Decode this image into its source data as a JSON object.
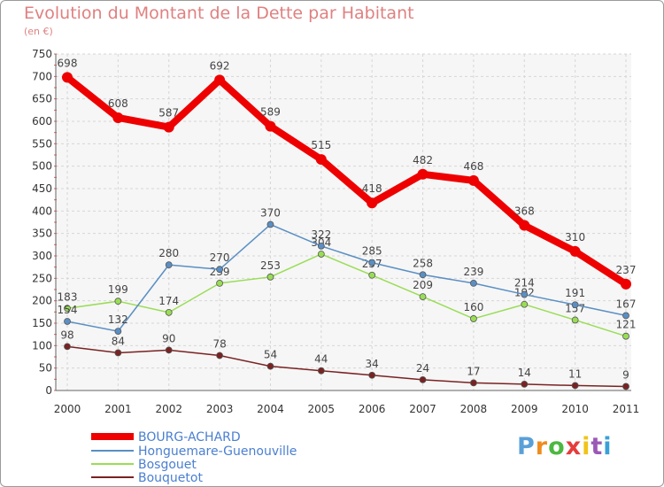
{
  "chart_data": {
    "type": "line",
    "title": "Evolution du Montant de la Dette par Habitant",
    "subtitle": "(en €)",
    "x": [
      "2000",
      "2001",
      "2002",
      "2003",
      "2004",
      "2005",
      "2006",
      "2007",
      "2008",
      "2009",
      "2010",
      "2011"
    ],
    "yticks": [
      0,
      50,
      100,
      150,
      200,
      250,
      300,
      350,
      400,
      450,
      500,
      550,
      600,
      650,
      700,
      750
    ],
    "ylim": [
      0,
      750
    ],
    "grid": true,
    "legend_position": "bottom-left",
    "series": [
      {
        "name": "BOURG-ACHARD",
        "color": "#ee0000",
        "values": [
          698,
          608,
          587,
          692,
          589,
          515,
          418,
          482,
          468,
          368,
          310,
          237
        ]
      },
      {
        "name": "Honguemare-Guenouville",
        "color": "#5a8fc4",
        "values": [
          154,
          132,
          280,
          270,
          370,
          322,
          285,
          258,
          239,
          214,
          191,
          167
        ]
      },
      {
        "name": "Bosgouet",
        "color": "#99dd55",
        "values": [
          183,
          199,
          174,
          239,
          253,
          304,
          257,
          209,
          160,
          192,
          157,
          121
        ]
      },
      {
        "name": "Bouquetot",
        "color": "#7a2222",
        "values": [
          98,
          84,
          90,
          78,
          54,
          44,
          34,
          24,
          17,
          14,
          11,
          9
        ]
      }
    ]
  },
  "logo_text": "Proxiti",
  "logo_colors": [
    "#5aa0d8",
    "#f08c1e",
    "#4cb840",
    "#e63c3c",
    "#f0c419",
    "#9b59b6",
    "#3aa0d8"
  ]
}
